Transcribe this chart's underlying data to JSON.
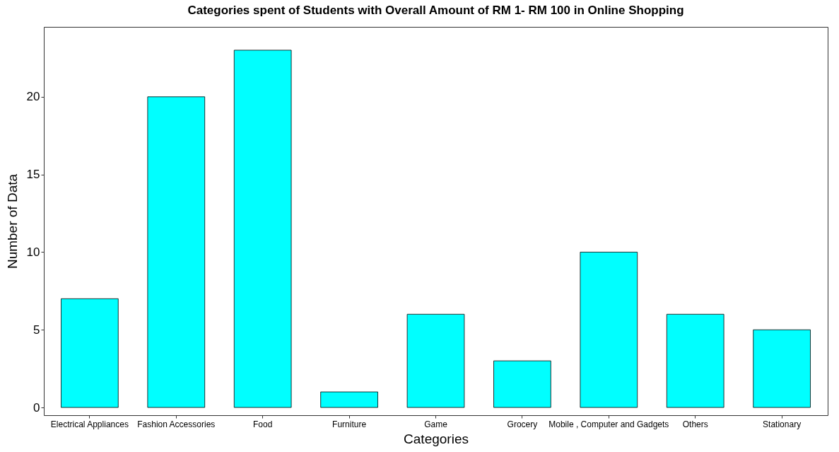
{
  "chart_data": {
    "type": "bar",
    "title": "Categories spent of Students with Overall Amount of RM 1- RM 100 in Online Shopping",
    "xlabel": "Categories",
    "ylabel": "Number of Data",
    "categories": [
      "Electrical Appliances",
      "Fashion Accessories",
      "Food",
      "Furniture",
      "Game",
      "Grocery",
      "Mobile , Computer and Gadgets",
      "Others",
      "Stationary"
    ],
    "values": [
      7,
      20,
      23,
      1,
      6,
      3,
      10,
      6,
      5
    ],
    "color": "#00ffff",
    "ylim": [
      -0.5,
      24.5
    ],
    "yticks": [
      0,
      5,
      10,
      15,
      20
    ],
    "grid": false
  }
}
